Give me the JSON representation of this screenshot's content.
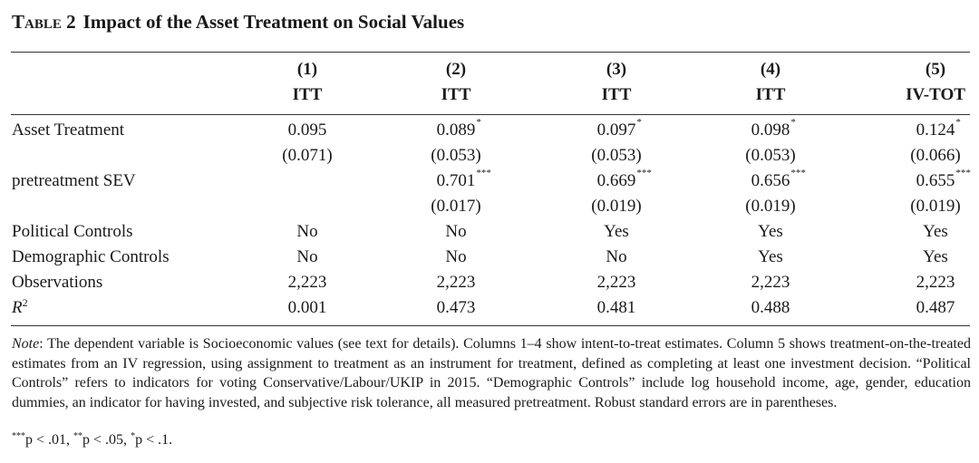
{
  "title": {
    "label": "Table 2",
    "text": "Impact of the Asset Treatment on Social Values"
  },
  "header": {
    "numbers": [
      "(1)",
      "(2)",
      "(3)",
      "(4)",
      "(5)"
    ],
    "types": [
      "ITT",
      "ITT",
      "ITT",
      "ITT",
      "IV-TOT"
    ]
  },
  "rows": {
    "asset_treatment": {
      "label": "Asset Treatment",
      "coef": [
        "0.095",
        "0.089",
        "0.097",
        "0.098",
        "0.124"
      ],
      "stars": [
        "",
        "*",
        "*",
        "*",
        "*"
      ],
      "se": [
        "(0.071)",
        "(0.053)",
        "(0.053)",
        "(0.053)",
        "(0.066)"
      ]
    },
    "pretreatment_sev": {
      "label": "pretreatment SEV",
      "coef": [
        "",
        "0.701",
        "0.669",
        "0.656",
        "0.655"
      ],
      "stars": [
        "",
        "***",
        "***",
        "***",
        "***"
      ],
      "se": [
        "",
        "(0.017)",
        "(0.019)",
        "(0.019)",
        "(0.019)"
      ]
    },
    "political_controls": {
      "label": "Political Controls",
      "values": [
        "No",
        "No",
        "Yes",
        "Yes",
        "Yes"
      ]
    },
    "demographic_controls": {
      "label": "Demographic Controls",
      "values": [
        "No",
        "No",
        "No",
        "Yes",
        "Yes"
      ]
    },
    "observations": {
      "label": "Observations",
      "values": [
        "2,223",
        "2,223",
        "2,223",
        "2,223",
        "2,223"
      ]
    },
    "r2": {
      "label": "R",
      "label_sup": "2",
      "values": [
        "0.001",
        "0.473",
        "0.481",
        "0.488",
        "0.487"
      ]
    }
  },
  "note": {
    "label": "Note",
    "text": ": The dependent variable is Socioeconomic values (see text for details). Columns 1–4 show intent-to-treat estimates. Column 5 shows treatment-on-the-treated estimates from an IV regression, using assignment to treatment as an instrument for treatment, defined as completing at least one investment decision. “Political Controls” refers to indicators for voting Conservative/Labour/UKIP in 2015. “Demographic Controls” include log household income, age, gender, education dummies, an indicator for having invested, and subjective risk tolerance, all measured pretreatment. Robust standard errors are in parentheses."
  },
  "significance": {
    "s1_stars": "***",
    "s1_text": "p < .01, ",
    "s2_stars": "**",
    "s2_text": "p < .05, ",
    "s3_stars": "*",
    "s3_text": "p < .1."
  }
}
